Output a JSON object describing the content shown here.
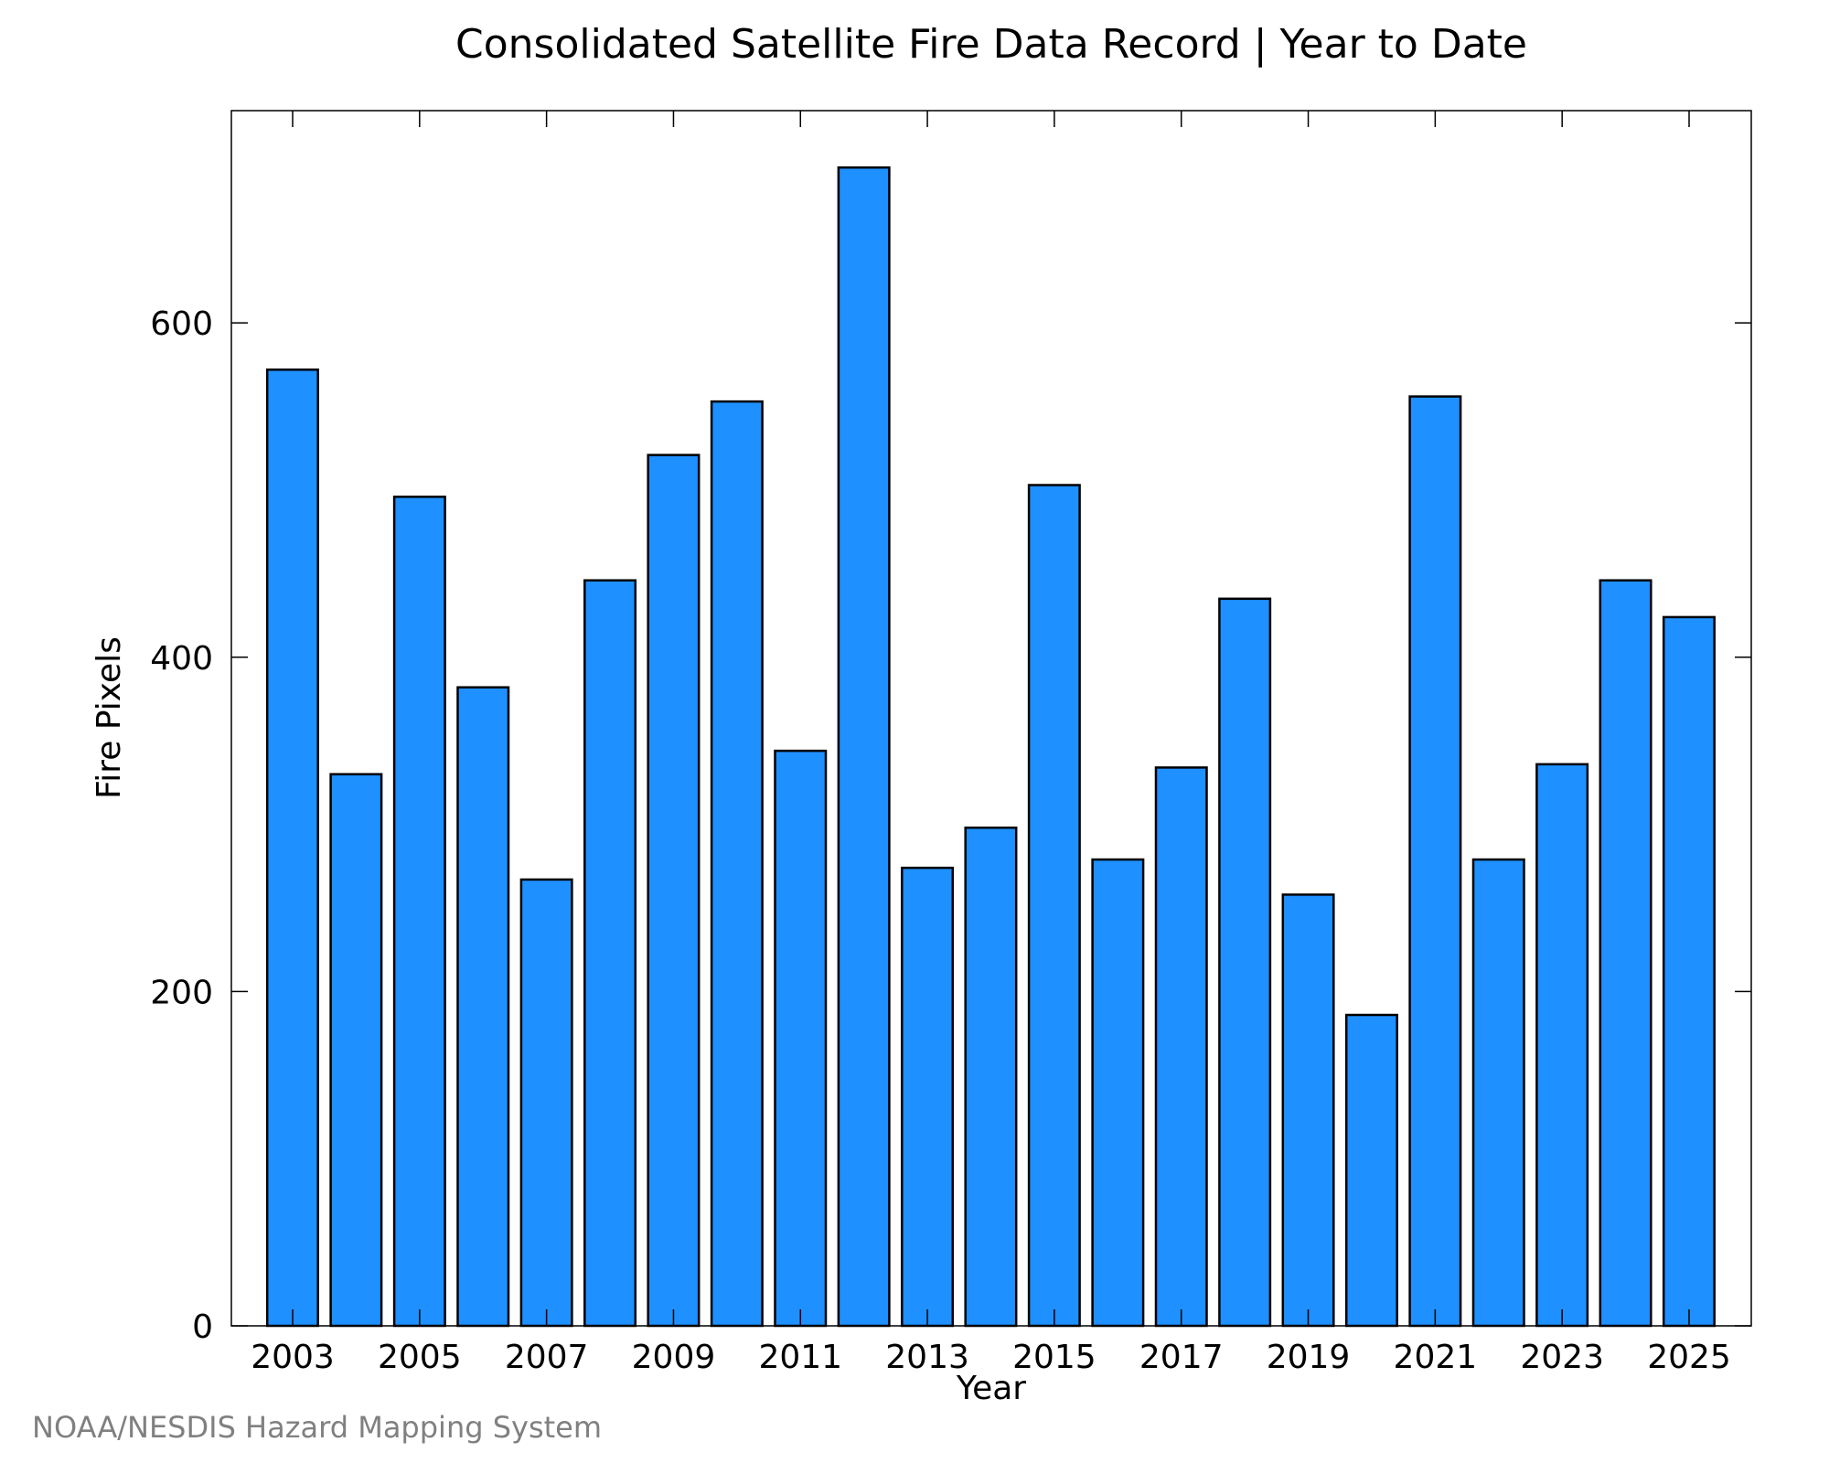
{
  "credit": "NOAA/NESDIS Hazard Mapping System",
  "chart_data": {
    "type": "bar",
    "title": "Consolidated Satellite Fire Data Record | Year to Date",
    "xlabel": "Year",
    "ylabel": "Fire Pixels",
    "categories": [
      "2003",
      "2004",
      "2005",
      "2006",
      "2007",
      "2008",
      "2009",
      "2010",
      "2011",
      "2012",
      "2013",
      "2014",
      "2015",
      "2016",
      "2017",
      "2018",
      "2019",
      "2020",
      "2021",
      "2022",
      "2023",
      "2024",
      "2025"
    ],
    "values": [
      572,
      330,
      496,
      382,
      267,
      446,
      521,
      553,
      344,
      693,
      274,
      298,
      503,
      279,
      334,
      435,
      258,
      186,
      556,
      279,
      336,
      446,
      424
    ],
    "x_tick_labels": [
      "2003",
      "2005",
      "2007",
      "2009",
      "2011",
      "2013",
      "2015",
      "2017",
      "2019",
      "2021",
      "2023",
      "2025"
    ],
    "y_ticks": [
      0,
      200,
      400,
      600
    ],
    "ylim": [
      0,
      727
    ],
    "grid": false,
    "legend": "none",
    "bar_color": "#1e90ff",
    "bar_edge_color": "#000000"
  }
}
